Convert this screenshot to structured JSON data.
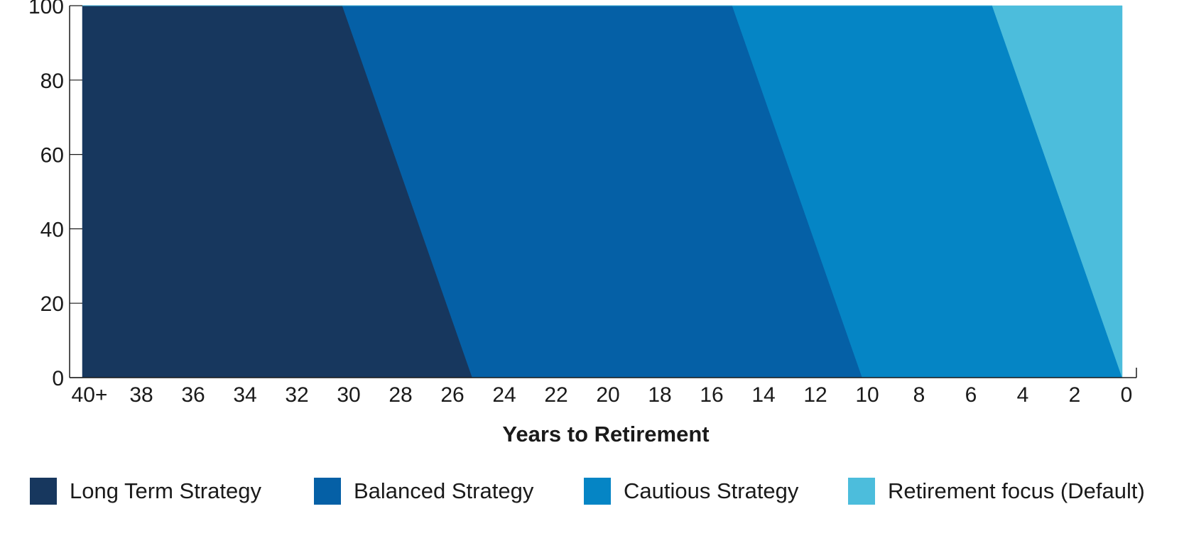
{
  "chart_data": {
    "type": "area",
    "xlabel": "Years to Retirement",
    "ylabel": "",
    "ylim": [
      0,
      100
    ],
    "xlim": [
      40,
      0
    ],
    "x_reversed": true,
    "yticks": [
      "0",
      "20",
      "40",
      "60",
      "80",
      "100"
    ],
    "xticks": [
      "40+",
      "38",
      "36",
      "34",
      "32",
      "30",
      "28",
      "26",
      "24",
      "22",
      "20",
      "18",
      "16",
      "14",
      "12",
      "10",
      "8",
      "6",
      "4",
      "2",
      "0"
    ],
    "x": [
      40,
      30,
      25,
      15,
      10,
      5,
      0
    ],
    "series": [
      {
        "name": "Long Term Strategy",
        "color": "#17375e",
        "values": [
          100,
          100,
          0,
          0,
          0,
          0,
          0
        ]
      },
      {
        "name": "Balanced Strategy",
        "color": "#0560a6",
        "values": [
          0,
          0,
          100,
          100,
          0,
          0,
          0
        ]
      },
      {
        "name": "Cautious Strategy",
        "color": "#0585c5",
        "values": [
          0,
          0,
          0,
          0,
          100,
          100,
          0
        ]
      },
      {
        "name": "Retirement focus (Default)",
        "color": "#4cbddc",
        "values": [
          0,
          0,
          0,
          0,
          0,
          0,
          100
        ]
      }
    ],
    "grid": false,
    "legend_position": "bottom"
  }
}
